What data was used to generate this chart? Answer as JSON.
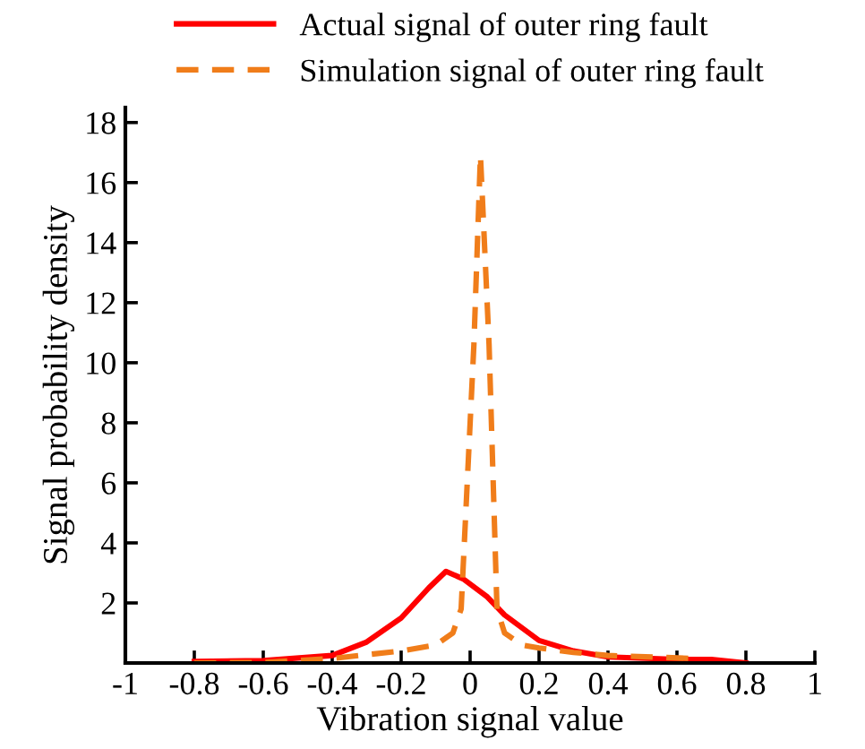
{
  "chart_data": {
    "type": "line",
    "xlabel": "Vibration signal value",
    "ylabel": "Signal probability density",
    "xlim": [
      -1,
      1
    ],
    "xticks": [
      -1,
      -0.8,
      -0.6,
      -0.4,
      -0.2,
      0,
      0.2,
      0.4,
      0.6,
      0.8,
      1
    ],
    "ylim": [
      0,
      18.5
    ],
    "yticks": [
      2,
      4,
      6,
      8,
      10,
      12,
      14,
      16,
      18
    ],
    "grid": false,
    "legend": "top",
    "marker": "none",
    "series": [
      {
        "name": "Actual signal of outer ring fault",
        "color": "#ff0000",
        "line_style": "solid",
        "x": [
          -0.8,
          -0.6,
          -0.4,
          -0.3,
          -0.2,
          -0.12,
          -0.07,
          -0.02,
          0.05,
          0.1,
          0.2,
          0.3,
          0.4,
          0.6,
          0.7,
          0.8
        ],
        "values": [
          0.05,
          0.08,
          0.25,
          0.7,
          1.5,
          2.5,
          3.05,
          2.8,
          2.2,
          1.6,
          0.75,
          0.4,
          0.2,
          0.12,
          0.12,
          0.0
        ]
      },
      {
        "name": "Simulation signal of outer ring fault",
        "color": "#f07d1a",
        "line_style": "dashed",
        "x": [
          -0.8,
          -0.6,
          -0.4,
          -0.2,
          -0.1,
          -0.05,
          -0.026,
          0.011,
          0.03,
          0.055,
          0.078,
          0.1,
          0.15,
          0.2,
          0.3,
          0.4,
          0.65
        ],
        "values": [
          0.0,
          0.02,
          0.15,
          0.4,
          0.6,
          1.0,
          1.8,
          10.6,
          16.9,
          10.6,
          1.8,
          1.0,
          0.6,
          0.5,
          0.35,
          0.25,
          0.15
        ]
      }
    ]
  }
}
